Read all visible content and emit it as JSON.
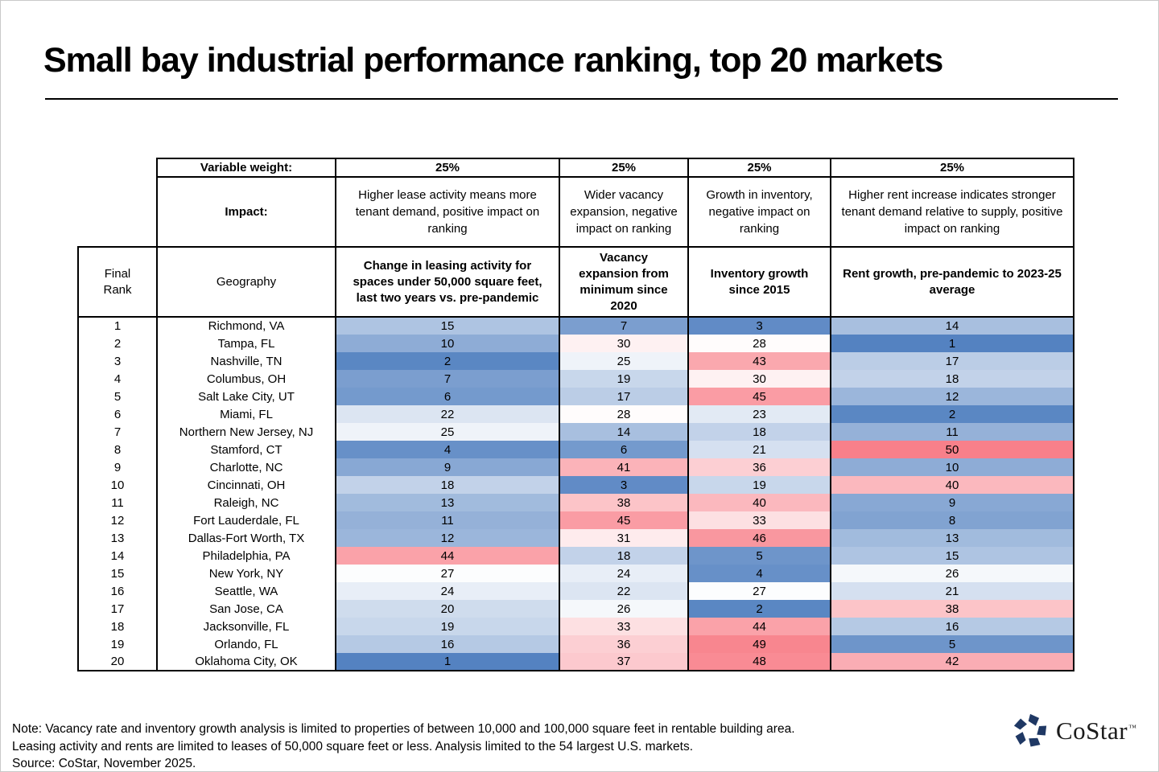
{
  "title": "Small bay industrial performance ranking, top 20 markets",
  "table": {
    "weight_label": "Variable weight:",
    "weights": [
      "25%",
      "25%",
      "25%",
      "25%"
    ],
    "impact_label": "Impact:",
    "impacts": [
      "Higher lease activity means more tenant demand, positive impact on ranking",
      "Wider vacancy expansion, negative impact on ranking",
      "Growth in inventory, negative impact on ranking",
      "Higher rent increase indicates stronger tenant demand relative to supply, positive impact on ranking"
    ],
    "headers": [
      "Final Rank",
      "Geography",
      "Change in leasing activity for spaces under 50,000 square feet, last two years vs. pre-pandemic",
      "Vacancy expansion from minimum since 2020",
      "Inventory growth since 2015",
      "Rent growth, pre-pandemic to 2023-25 average"
    ]
  },
  "chart_data": {
    "type": "heatmap",
    "title": "Small bay industrial performance ranking, top 20 markets",
    "metric_columns": [
      "Change in leasing activity for spaces under 50,000 square feet, last two years vs. pre-pandemic",
      "Vacancy expansion from minimum since 2020",
      "Inventory growth since 2015",
      "Rent growth, pre-pandemic to 2023-25 average"
    ],
    "variable_weights": [
      "25%",
      "25%",
      "25%",
      "25%"
    ],
    "heat_scale": {
      "low_value": 1,
      "mid_value": 27.5,
      "high_value": 50,
      "low_color": "#5482C1",
      "mid_color": "#FFFFFF",
      "high_color": "#F8808A"
    },
    "rows": [
      {
        "rank": 1,
        "geography": "Richmond, VA",
        "values": [
          15,
          7,
          3,
          14
        ]
      },
      {
        "rank": 2,
        "geography": "Tampa, FL",
        "values": [
          10,
          30,
          28,
          1
        ]
      },
      {
        "rank": 3,
        "geography": "Nashville, TN",
        "values": [
          2,
          25,
          43,
          17
        ]
      },
      {
        "rank": 4,
        "geography": "Columbus, OH",
        "values": [
          7,
          19,
          30,
          18
        ]
      },
      {
        "rank": 5,
        "geography": "Salt Lake City, UT",
        "values": [
          6,
          17,
          45,
          12
        ]
      },
      {
        "rank": 6,
        "geography": "Miami, FL",
        "values": [
          22,
          28,
          23,
          2
        ]
      },
      {
        "rank": 7,
        "geography": "Northern New Jersey, NJ",
        "values": [
          25,
          14,
          18,
          11
        ]
      },
      {
        "rank": 8,
        "geography": "Stamford, CT",
        "values": [
          4,
          6,
          21,
          50
        ]
      },
      {
        "rank": 9,
        "geography": "Charlotte, NC",
        "values": [
          9,
          41,
          36,
          10
        ]
      },
      {
        "rank": 10,
        "geography": "Cincinnati, OH",
        "values": [
          18,
          3,
          19,
          40
        ]
      },
      {
        "rank": 11,
        "geography": "Raleigh, NC",
        "values": [
          13,
          38,
          40,
          9
        ]
      },
      {
        "rank": 12,
        "geography": "Fort Lauderdale, FL",
        "values": [
          11,
          45,
          33,
          8
        ]
      },
      {
        "rank": 13,
        "geography": "Dallas-Fort Worth, TX",
        "values": [
          12,
          31,
          46,
          13
        ]
      },
      {
        "rank": 14,
        "geography": "Philadelphia, PA",
        "values": [
          44,
          18,
          5,
          15
        ]
      },
      {
        "rank": 15,
        "geography": "New York, NY",
        "values": [
          27,
          24,
          4,
          26
        ]
      },
      {
        "rank": 16,
        "geography": "Seattle, WA",
        "values": [
          24,
          22,
          27,
          21
        ]
      },
      {
        "rank": 17,
        "geography": "San Jose, CA",
        "values": [
          20,
          26,
          2,
          38
        ]
      },
      {
        "rank": 18,
        "geography": "Jacksonville, FL",
        "values": [
          19,
          33,
          44,
          16
        ]
      },
      {
        "rank": 19,
        "geography": "Orlando, FL",
        "values": [
          16,
          36,
          49,
          5
        ]
      },
      {
        "rank": 20,
        "geography": "Oklahoma City, OK",
        "values": [
          1,
          37,
          48,
          42
        ]
      }
    ]
  },
  "footnotes": [
    "Note: Vacancy rate and inventory growth analysis is limited to properties of between 10,000 and 100,000 square feet in rentable building area.",
    "Leasing activity and rents are limited to leases of 50,000 square feet or less. Analysis limited to the 54 largest U.S. markets.",
    "Source: CoStar, November 2025."
  ],
  "logo": {
    "name": "CoStar",
    "tm": "™",
    "icon_color": "#1F3864",
    "text_color": "#1a1a1a"
  }
}
